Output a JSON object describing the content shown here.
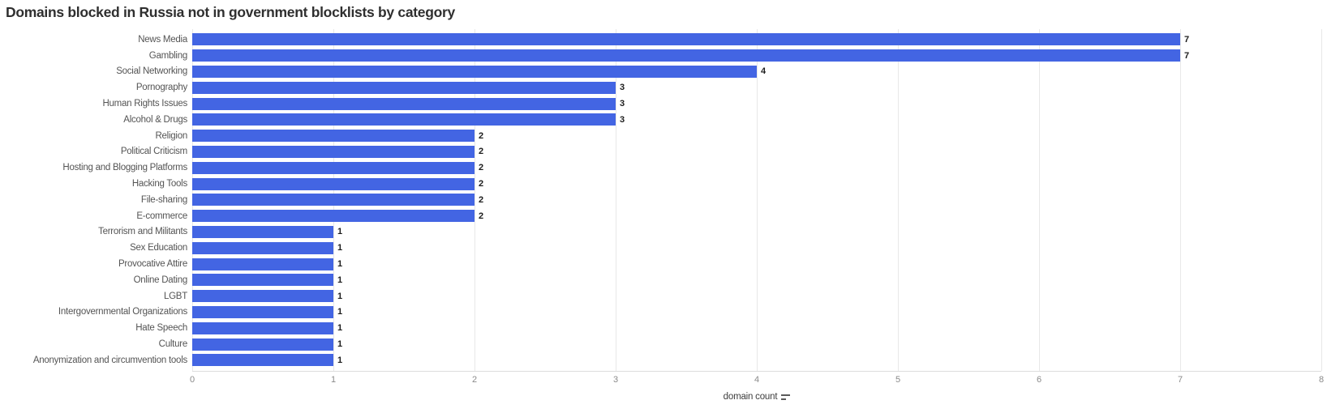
{
  "title": "Domains blocked in Russia not in government blocklists by category",
  "colors": {
    "bar": "#4365e3",
    "gridline": "#e8e8e8",
    "axis_line": "#dddddd",
    "category_label": "#545454",
    "value_label": "#1c1c1c",
    "tick_label": "#8a8a8a",
    "title_text": "#2f2f2f"
  },
  "x_axis": {
    "label": "domain count",
    "sort_indicator": "descending"
  },
  "chart_data": {
    "type": "bar",
    "orientation": "horizontal",
    "title": "Domains blocked in Russia not in government blocklists by category",
    "xlabel": "domain count",
    "ylabel": "",
    "xlim": [
      0,
      8
    ],
    "xticks": [
      0,
      1,
      2,
      3,
      4,
      5,
      6,
      7,
      8
    ],
    "grid": true,
    "value_labels": true,
    "sort": "descending",
    "categories": [
      "News Media",
      "Gambling",
      "Social Networking",
      "Pornography",
      "Human Rights Issues",
      "Alcohol & Drugs",
      "Religion",
      "Political Criticism",
      "Hosting and Blogging Platforms",
      "Hacking Tools",
      "File-sharing",
      "E-commerce",
      "Terrorism and Militants",
      "Sex Education",
      "Provocative Attire",
      "Online Dating",
      "LGBT",
      "Intergovernmental Organizations",
      "Hate Speech",
      "Culture",
      "Anonymization and circumvention tools"
    ],
    "values": [
      7,
      7,
      4,
      3,
      3,
      3,
      2,
      2,
      2,
      2,
      2,
      2,
      1,
      1,
      1,
      1,
      1,
      1,
      1,
      1,
      1
    ]
  }
}
